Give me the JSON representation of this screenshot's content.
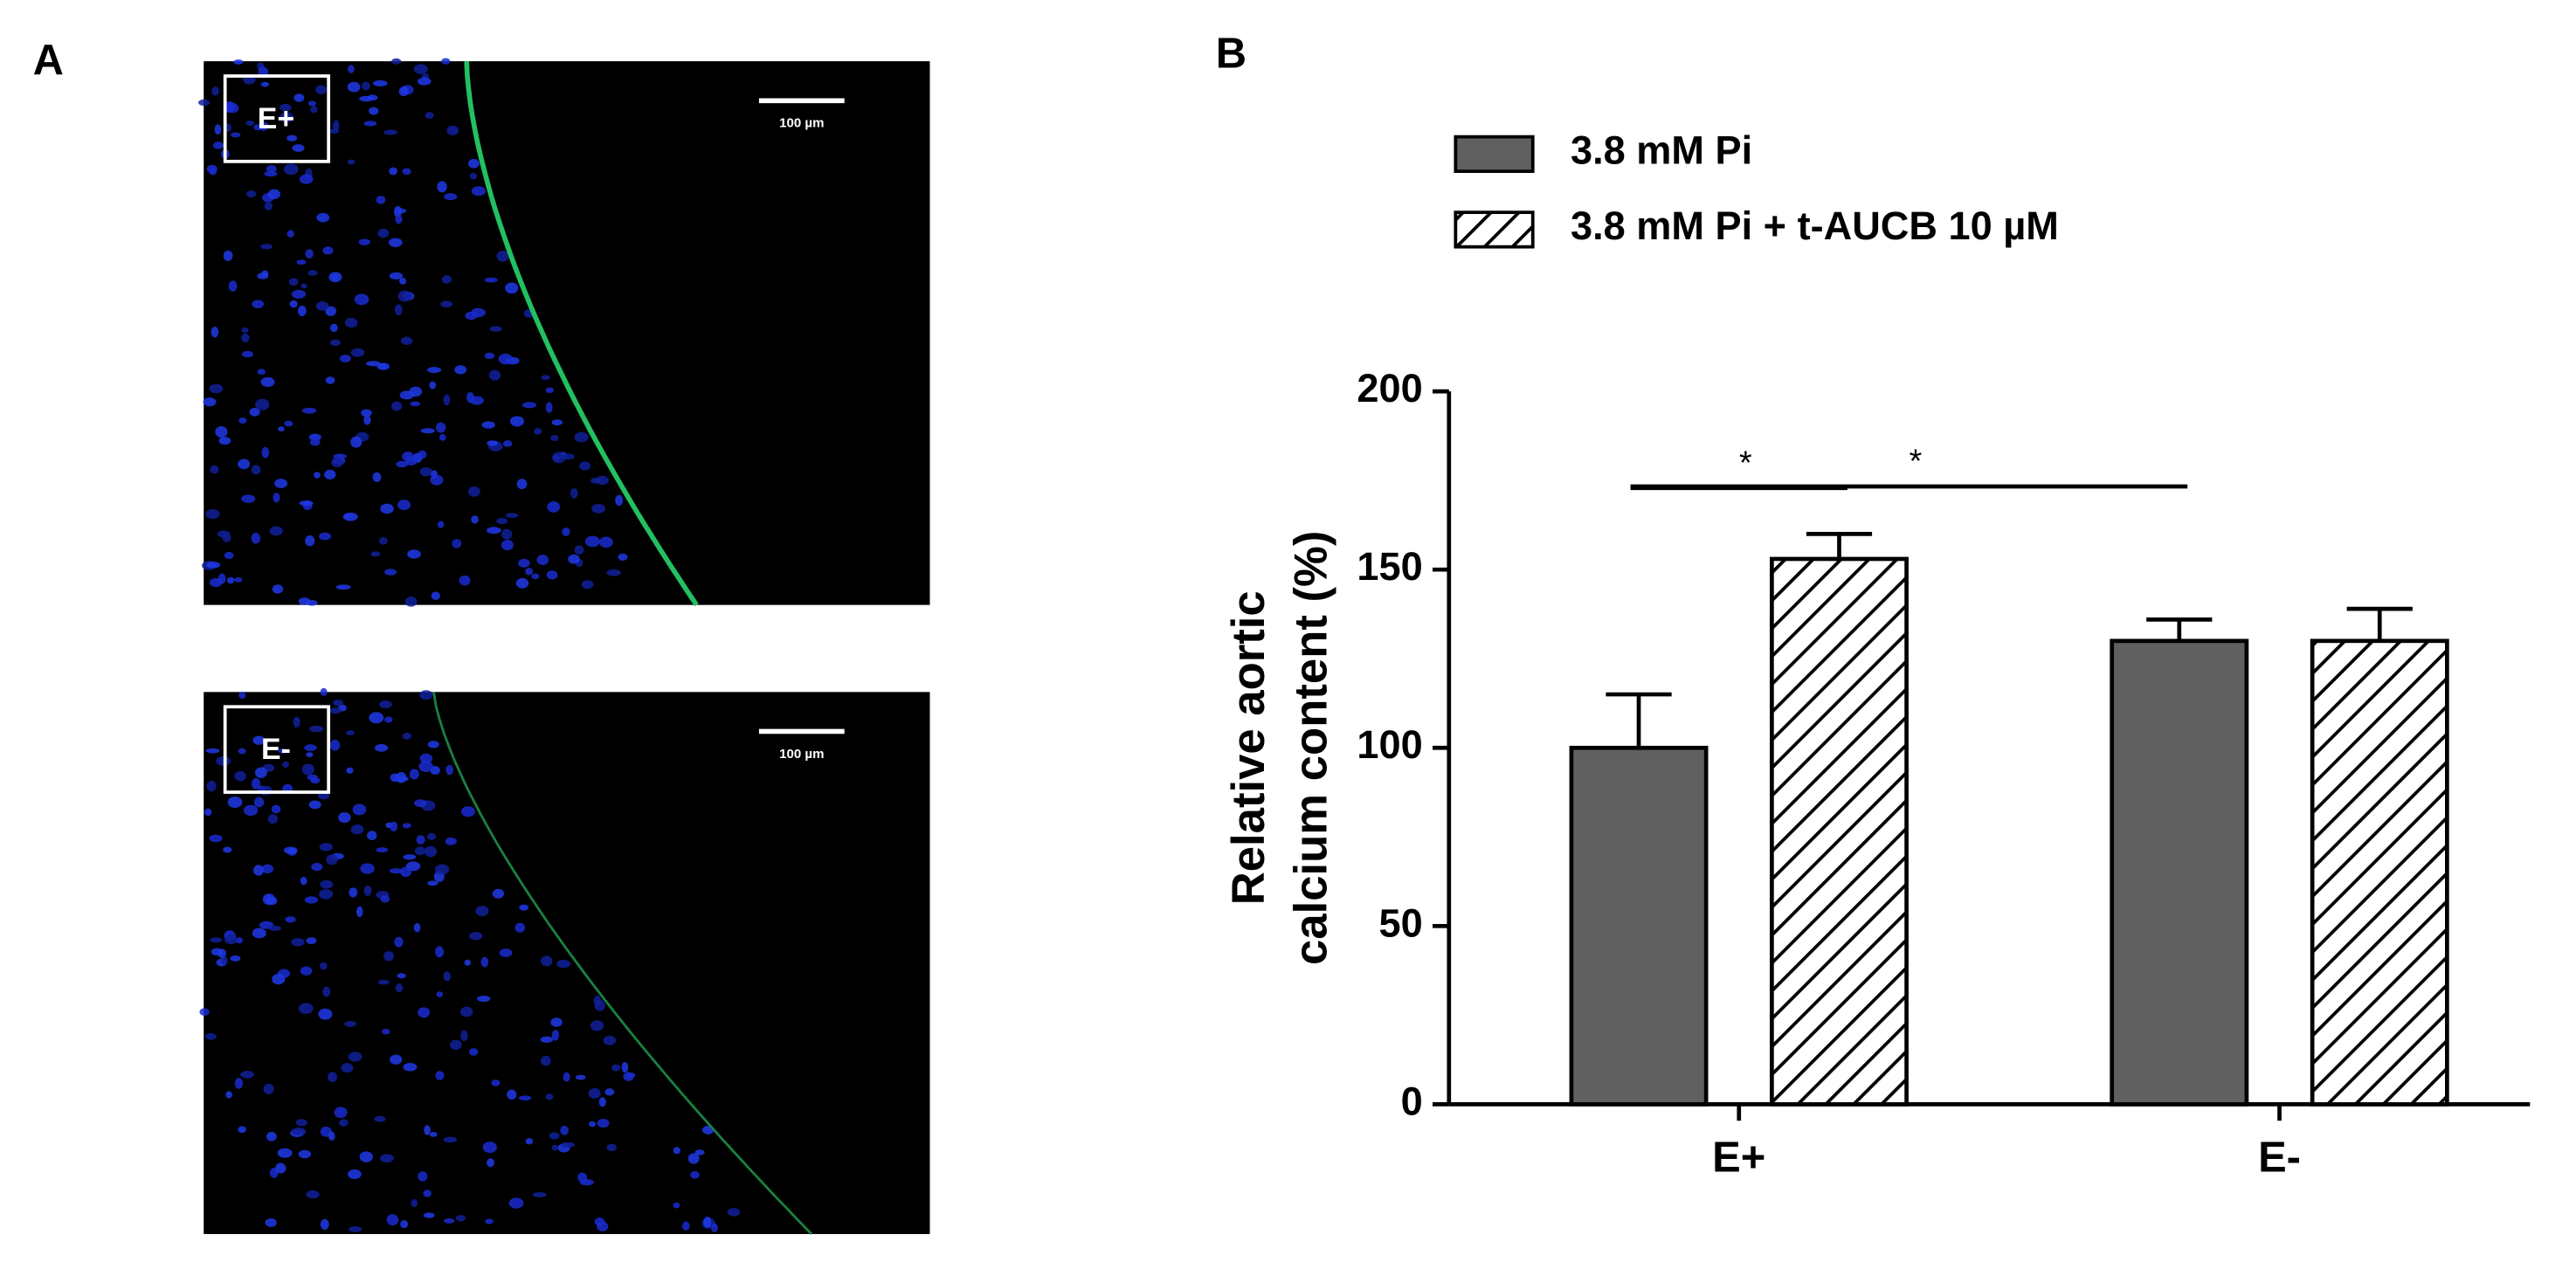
{
  "panel_a": {
    "label": "A",
    "images": [
      {
        "label": "E+",
        "scale_bar": "100 µm"
      },
      {
        "label": "E-",
        "scale_bar": "100 µm"
      }
    ]
  },
  "chart_data": {
    "type": "bar",
    "panel_label": "B",
    "y_label": [
      "Relative aortic",
      "calcium content (%)"
    ],
    "categories": [
      "E+",
      "E-"
    ],
    "series": [
      {
        "name": "3.8 mM Pi",
        "color": "#606060",
        "pattern": "solid",
        "values": [
          100,
          130
        ],
        "errors": [
          15,
          6
        ]
      },
      {
        "name": "3.8 mM Pi + t-AUCB 10 µM",
        "color": "#ffffff",
        "pattern": "hatch",
        "values": [
          153,
          130
        ],
        "errors": [
          7,
          9
        ]
      }
    ],
    "ylim": [
      0,
      200
    ],
    "yticks": [
      0,
      50,
      100,
      150,
      200
    ],
    "significance": [
      {
        "from": [
          0,
          0
        ],
        "to": [
          0,
          1
        ],
        "label": "*"
      },
      {
        "from": [
          0,
          0
        ],
        "to": [
          1,
          0
        ],
        "label": "*"
      }
    ]
  }
}
